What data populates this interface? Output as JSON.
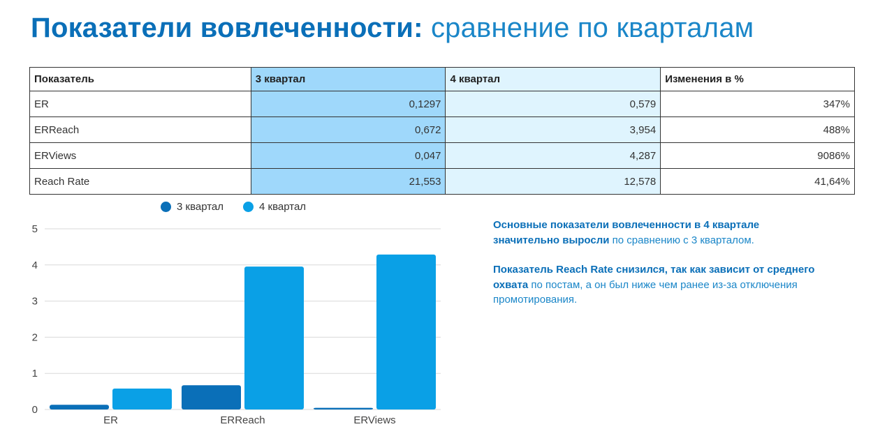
{
  "title": {
    "bold": "Показатели вовлеченности:",
    "light": "сравнение по кварталам"
  },
  "table": {
    "headers": [
      "Показатель",
      "3 квартал",
      "4 квартал",
      "Изменения в %"
    ],
    "rows": [
      [
        "ER",
        "0,1297",
        "0,579",
        "347%"
      ],
      [
        "ERReach",
        "0,672",
        "3,954",
        "488%"
      ],
      [
        "ERViews",
        "0,047",
        "4,287",
        "9086%"
      ],
      [
        "Reach Rate",
        "21,553",
        "12,578",
        "41,64%"
      ]
    ]
  },
  "notes": {
    "p1_bold": "Основные показатели вовлеченности в 4 квартале значительно выросли",
    "p1_text": " по сравнению с 3 кварталом.",
    "p2_bold": "Показатель Reach Rate снизился, так как зависит от среднего охвата",
    "p2_text": " по постам, а он был ниже чем ранее из-за отключения промотирования."
  },
  "colors": {
    "q3": "#0a6fb8",
    "q4": "#0aa0e6",
    "q3_table": "#9fd8fb",
    "q4_table": "#dff4fe"
  },
  "chart_data": {
    "type": "bar",
    "categories": [
      "ER",
      "ERReach",
      "ERViews"
    ],
    "series": [
      {
        "name": "3 квартал",
        "values": [
          0.1297,
          0.672,
          0.047
        ],
        "color": "#0a6fb8"
      },
      {
        "name": "4 квартал",
        "values": [
          0.579,
          3.954,
          4.287
        ],
        "color": "#0aa0e6"
      }
    ],
    "ylim": [
      0,
      5
    ],
    "yticks": [
      "0",
      "1",
      "2",
      "3",
      "4",
      "5"
    ],
    "grid": true,
    "legend": "top"
  }
}
